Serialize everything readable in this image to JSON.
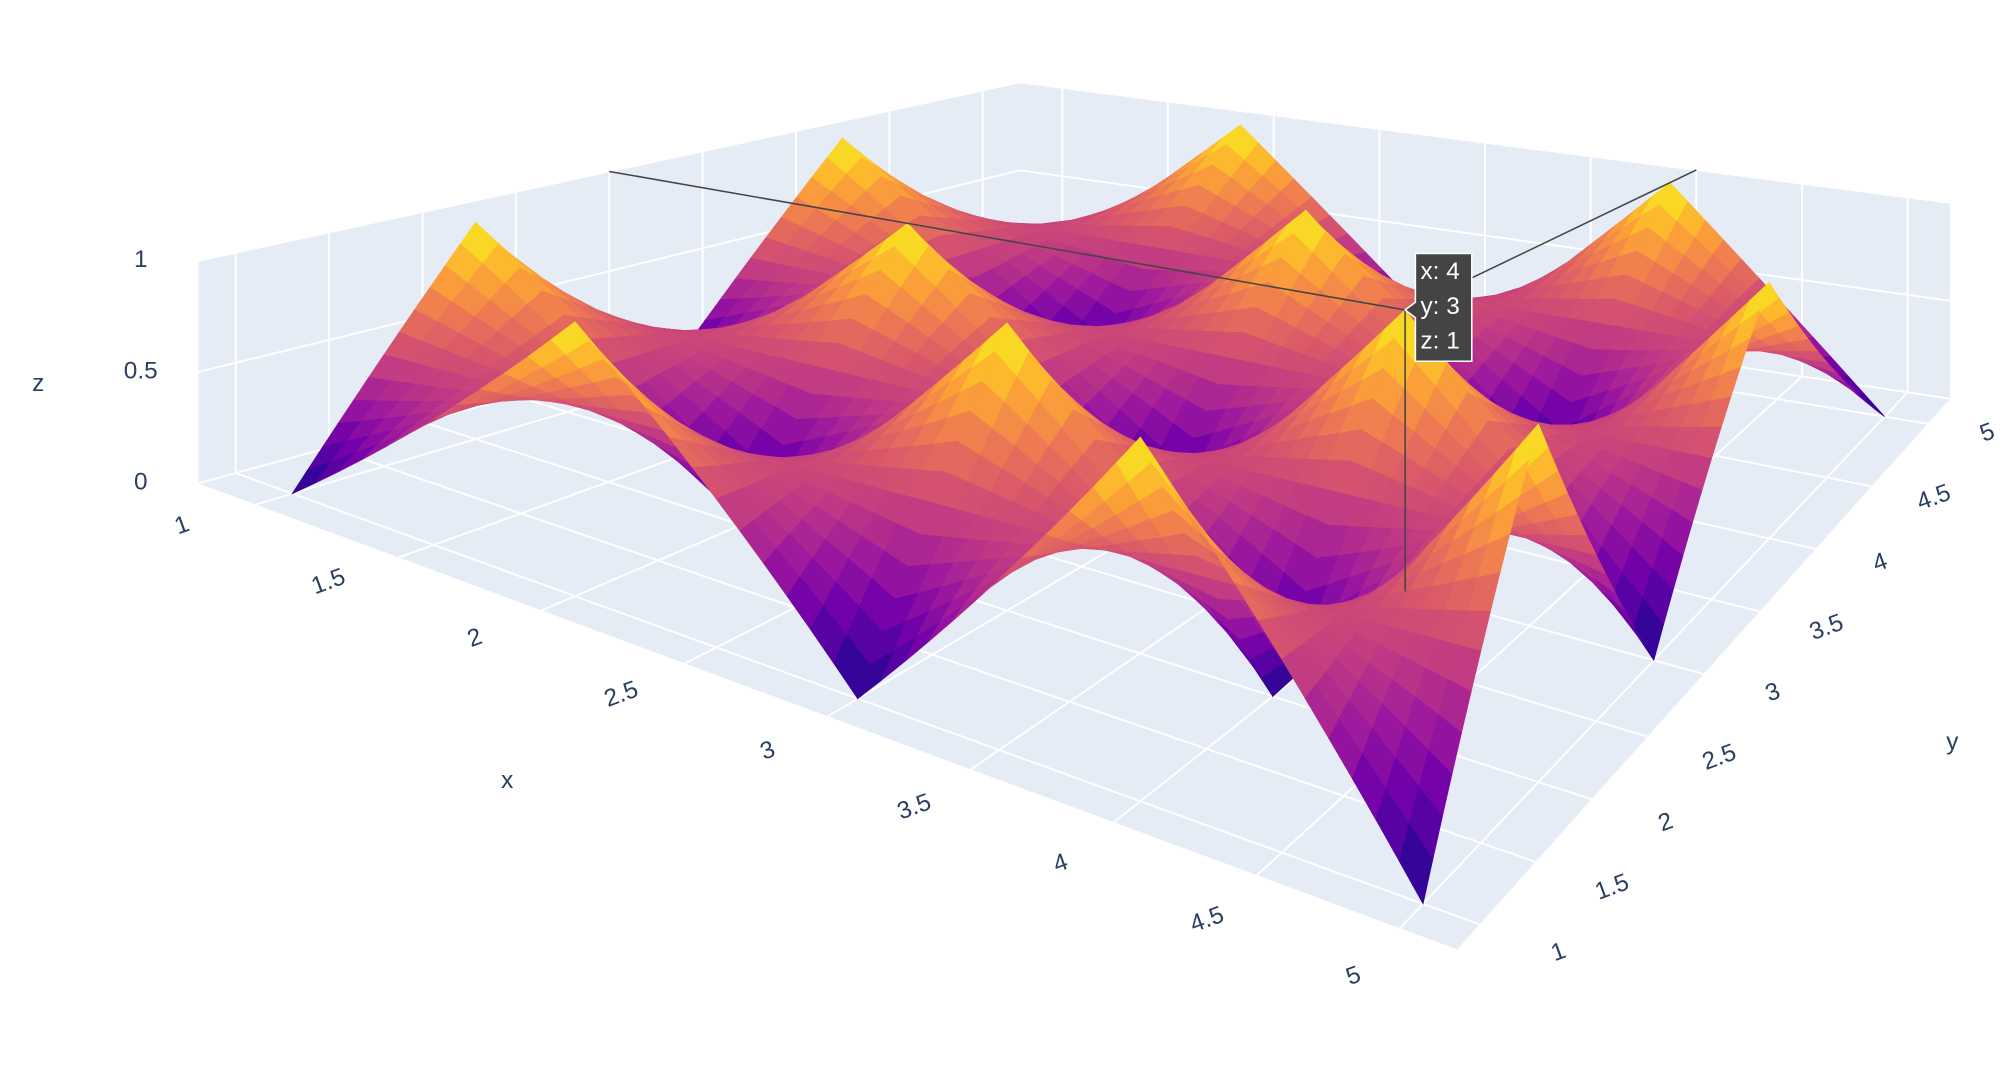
{
  "chart_data": {
    "type": "surface",
    "x": [
      1,
      2,
      3,
      4,
      5
    ],
    "y": [
      1,
      2,
      3,
      4,
      5
    ],
    "z": [
      [
        0,
        1,
        0,
        1,
        0
      ],
      [
        1,
        0,
        1,
        0,
        1
      ],
      [
        0,
        1,
        0,
        1,
        0
      ],
      [
        1,
        0,
        1,
        0,
        1
      ],
      [
        0,
        1,
        0,
        1,
        0
      ]
    ],
    "xlim": [
      1,
      5
    ],
    "ylim": [
      1,
      5
    ],
    "zlim": [
      0,
      1
    ],
    "xticks": [
      1,
      1.5,
      2,
      2.5,
      3,
      3.5,
      4,
      4.5,
      5
    ],
    "yticks": [
      1,
      1.5,
      2,
      2.5,
      3,
      3.5,
      4,
      4.5,
      5
    ],
    "zticks": [
      0,
      0.5,
      1
    ],
    "xlabel": "x",
    "ylabel": "y",
    "zlabel": "z",
    "colorscale": [
      "#0d0887",
      "#46039f",
      "#7201a8",
      "#9c179e",
      "#bd3786",
      "#d8576b",
      "#ed7953",
      "#fb9f3a",
      "#fdca26",
      "#f0f921"
    ],
    "grid": true,
    "hover": {
      "x": 4,
      "y": 3,
      "z": 1,
      "labels": [
        "x: 4",
        "y: 3",
        "z: 1"
      ]
    }
  }
}
